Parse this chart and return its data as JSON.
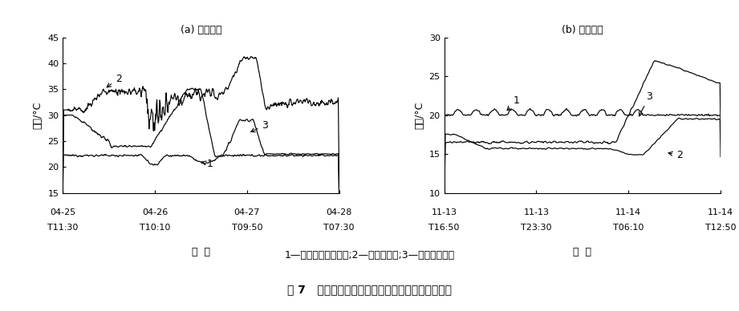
{
  "fig_width": 9.21,
  "fig_height": 3.88,
  "dpi": 100,
  "bg_color": "#ffffff",
  "subplot_a": {
    "title": "(a) 夏季降温",
    "ylabel": "温度/°C",
    "xlabel": "日  期",
    "ylim": [
      15,
      45
    ],
    "yticks": [
      15,
      20,
      25,
      30,
      35,
      40,
      45
    ],
    "xtick_top": [
      "04-25",
      "04-26",
      "04-27",
      "04-28"
    ],
    "xtick_bot": [
      "T11:30",
      "T10:10",
      "T09:50",
      "T07:30"
    ]
  },
  "subplot_b": {
    "title": "(b) 冬季加温",
    "ylabel": "温度/°C",
    "xlabel": "日  期",
    "ylim": [
      10,
      30
    ],
    "yticks": [
      10,
      15,
      20,
      25,
      30
    ],
    "xtick_top": [
      "11-13",
      "11-13",
      "11-14",
      "11-14"
    ],
    "xtick_bot": [
      "T16:50",
      "T23:30",
      "T06:10",
      "T12:50"
    ]
  },
  "caption_line1": "1—采用热电温控系统;2—无温控措施;3—温室环境温度",
  "caption_line2": "图 7   不同温控措施下夏季和冬季营养液温度的变化"
}
